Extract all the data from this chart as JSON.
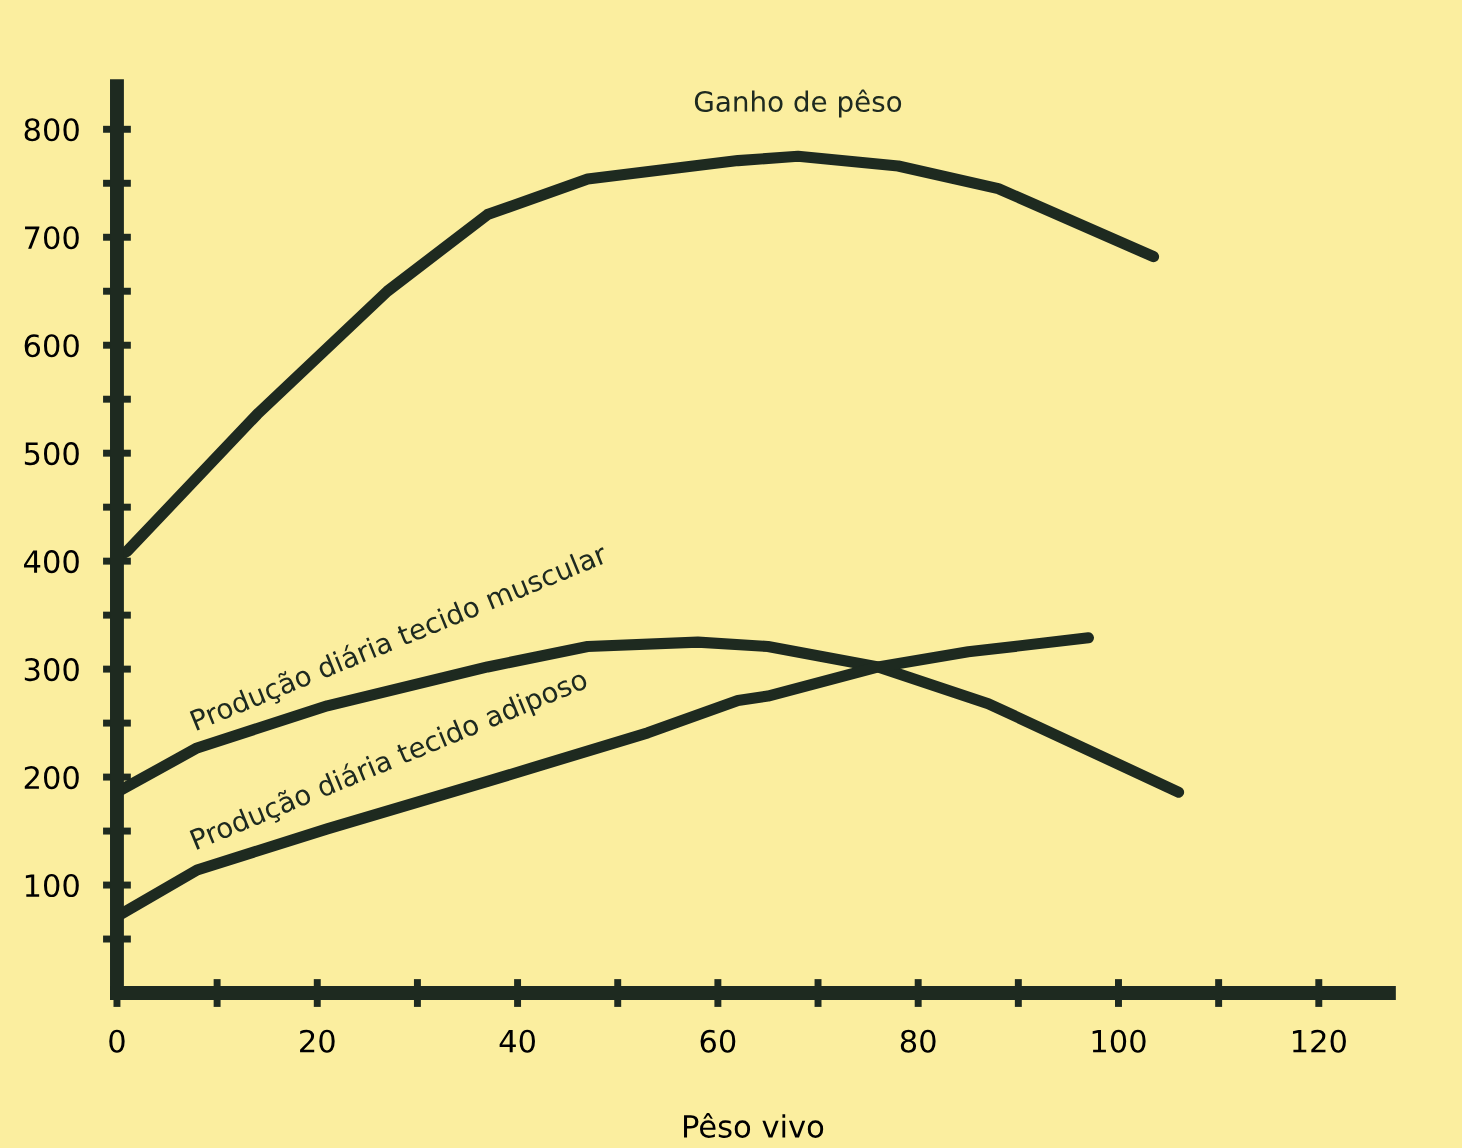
{
  "chart_data": {
    "type": "line",
    "xlabel": "Pêso vivo",
    "series": [
      {
        "name": "Ganho de pêso",
        "color": "#1e2a20",
        "x": [
          0,
          1,
          14,
          27,
          37,
          47,
          62,
          68,
          78,
          88,
          103.5
        ],
        "values": [
          404,
          409,
          536,
          650,
          721,
          754,
          771,
          775,
          766,
          745,
          682
        ]
      },
      {
        "name": "Produção diária tecido muscular",
        "color": "#1e2a20",
        "x": [
          0,
          8,
          21,
          37,
          47,
          58,
          65,
          76,
          87,
          106
        ],
        "values": [
          186,
          227,
          266,
          302,
          321,
          325,
          321,
          302,
          268,
          186
        ]
      },
      {
        "name": "Produção diária tecido adiposo",
        "color": "#1e2a20",
        "x": [
          0,
          8,
          21,
          37,
          53,
          62,
          65,
          76,
          85,
          97
        ],
        "values": [
          71,
          114,
          152,
          196,
          241,
          271,
          275,
          302,
          316,
          329
        ]
      }
    ],
    "xlim": [
      0,
      127
    ],
    "ylim": [
      0,
      840
    ],
    "xticks": [
      0,
      {
        "value": 10,
        "label": null
      },
      20,
      {
        "value": 30,
        "label": null
      },
      40,
      {
        "value": 50,
        "label": null
      },
      60,
      {
        "value": 70,
        "label": null
      },
      80,
      {
        "value": 90,
        "label": null
      },
      100,
      {
        "value": 110,
        "label": null
      },
      120
    ],
    "yticks": [
      {
        "value": 50,
        "label": null
      },
      100,
      {
        "value": 150,
        "label": null
      },
      200,
      {
        "value": 250,
        "label": null
      },
      300,
      {
        "value": 350,
        "label": null
      },
      400,
      {
        "value": 450,
        "label": null
      },
      500,
      {
        "value": 550,
        "label": null
      },
      600,
      {
        "value": 650,
        "label": null
      },
      700,
      {
        "value": 750,
        "label": null
      },
      800
    ],
    "grid": false,
    "legend": false,
    "marker": "none",
    "line_style": "solid"
  }
}
